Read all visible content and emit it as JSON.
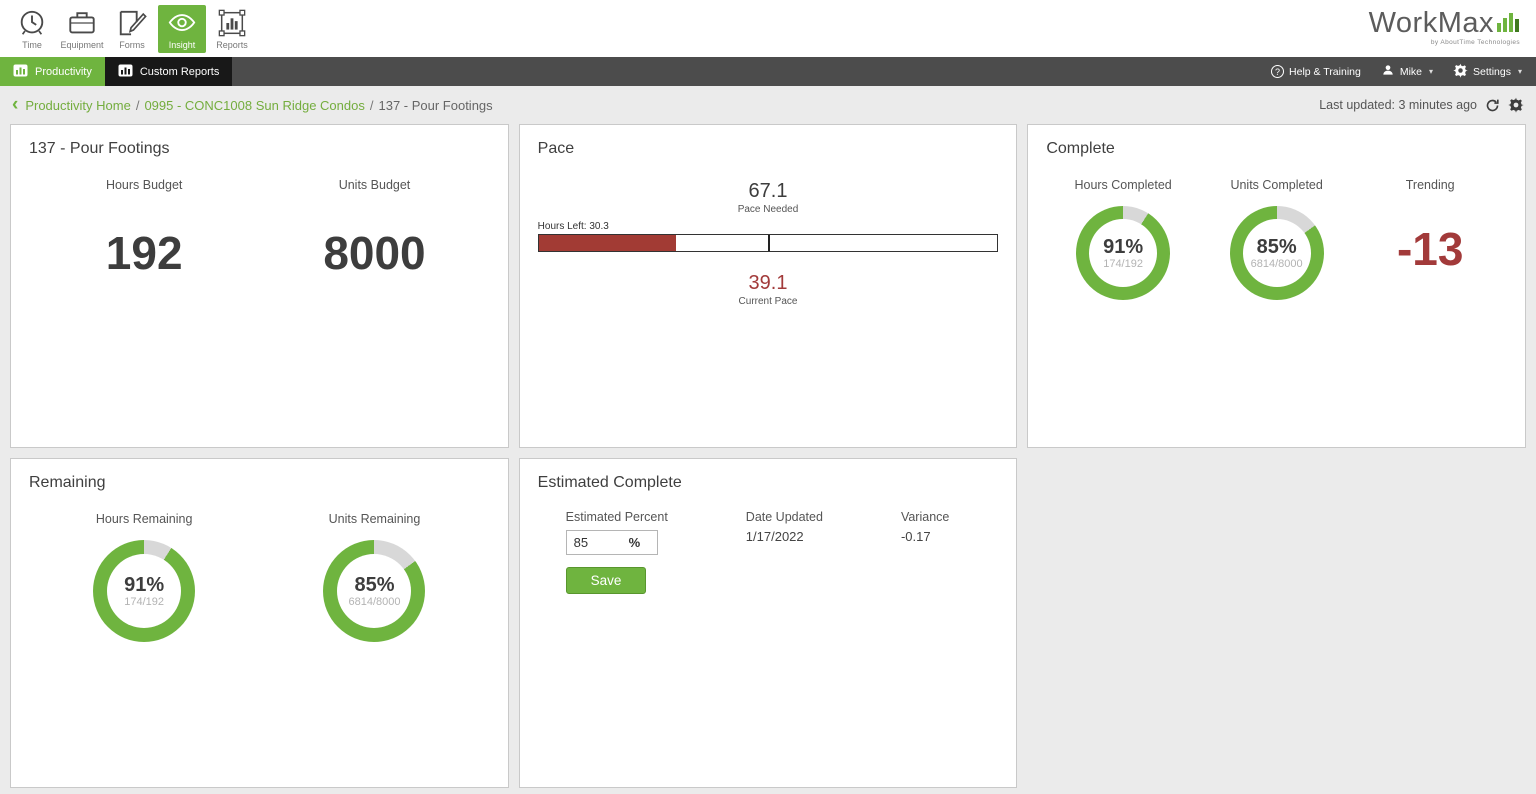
{
  "app": {
    "logo_text": "WorkMax",
    "logo_sub": "by AboutTime Technologies"
  },
  "icons": {
    "back": "‹",
    "chevron_down": "▾",
    "question": "?"
  },
  "toolbar": {
    "items": [
      {
        "label": "Time",
        "icon": "clock-icon"
      },
      {
        "label": "Equipment",
        "icon": "briefcase-icon"
      },
      {
        "label": "Forms",
        "icon": "form-pen-icon"
      },
      {
        "label": "Insight",
        "icon": "eye-icon",
        "active": true
      },
      {
        "label": "Reports",
        "icon": "bar-chart-icon"
      }
    ]
  },
  "navbar": {
    "tabs": [
      {
        "label": "Productivity",
        "active": true
      },
      {
        "label": "Custom Reports",
        "active": false
      }
    ],
    "help_label": "Help & Training",
    "user_label": "Mike",
    "settings_label": "Settings"
  },
  "breadcrumb": {
    "separator": "/",
    "items": [
      {
        "label": "Productivity Home"
      },
      {
        "label": "0995 - CONC1008 Sun Ridge Condos"
      },
      {
        "label": "137 - Pour Footings"
      }
    ],
    "last_updated": "Last updated: 3 minutes ago"
  },
  "cards": {
    "budget": {
      "title": "137 - Pour Footings",
      "hours_label": "Hours Budget",
      "hours_value": "192",
      "units_label": "Units Budget",
      "units_value": "8000"
    },
    "pace": {
      "title": "Pace",
      "pace_needed_value": "67.1",
      "pace_needed_label": "Pace Needed",
      "hours_left_label": "Hours Left: 30.3",
      "current_pace_value": "39.1",
      "current_pace_label": "Current Pace",
      "bar_fill_pct": 30,
      "bar_tick_pct": 50
    },
    "complete": {
      "title": "Complete",
      "columns": [
        {
          "label": "Hours Completed",
          "pct": "91%",
          "pct_num": 91,
          "fraction": "174/192"
        },
        {
          "label": "Units Completed",
          "pct": "85%",
          "pct_num": 85,
          "fraction": "6814/8000"
        }
      ],
      "trending_label": "Trending",
      "trending_value": "-13"
    },
    "remaining": {
      "title": "Remaining",
      "columns": [
        {
          "label": "Hours Remaining",
          "pct": "91%",
          "pct_num": 91,
          "fraction": "174/192"
        },
        {
          "label": "Units Remaining",
          "pct": "85%",
          "pct_num": 85,
          "fraction": "6814/8000"
        }
      ]
    },
    "estimated": {
      "title": "Estimated Complete",
      "percent_label": "Estimated Percent",
      "percent_value": "85",
      "percent_suffix": "%",
      "date_label": "Date Updated",
      "date_value": "1/17/2022",
      "variance_label": "Variance",
      "variance_value": "-0.17",
      "save_label": "Save"
    }
  },
  "colors": {
    "green": "#6fb43f",
    "dark_red": "#a23a3a",
    "nav_dark": "#4c4c4c"
  }
}
